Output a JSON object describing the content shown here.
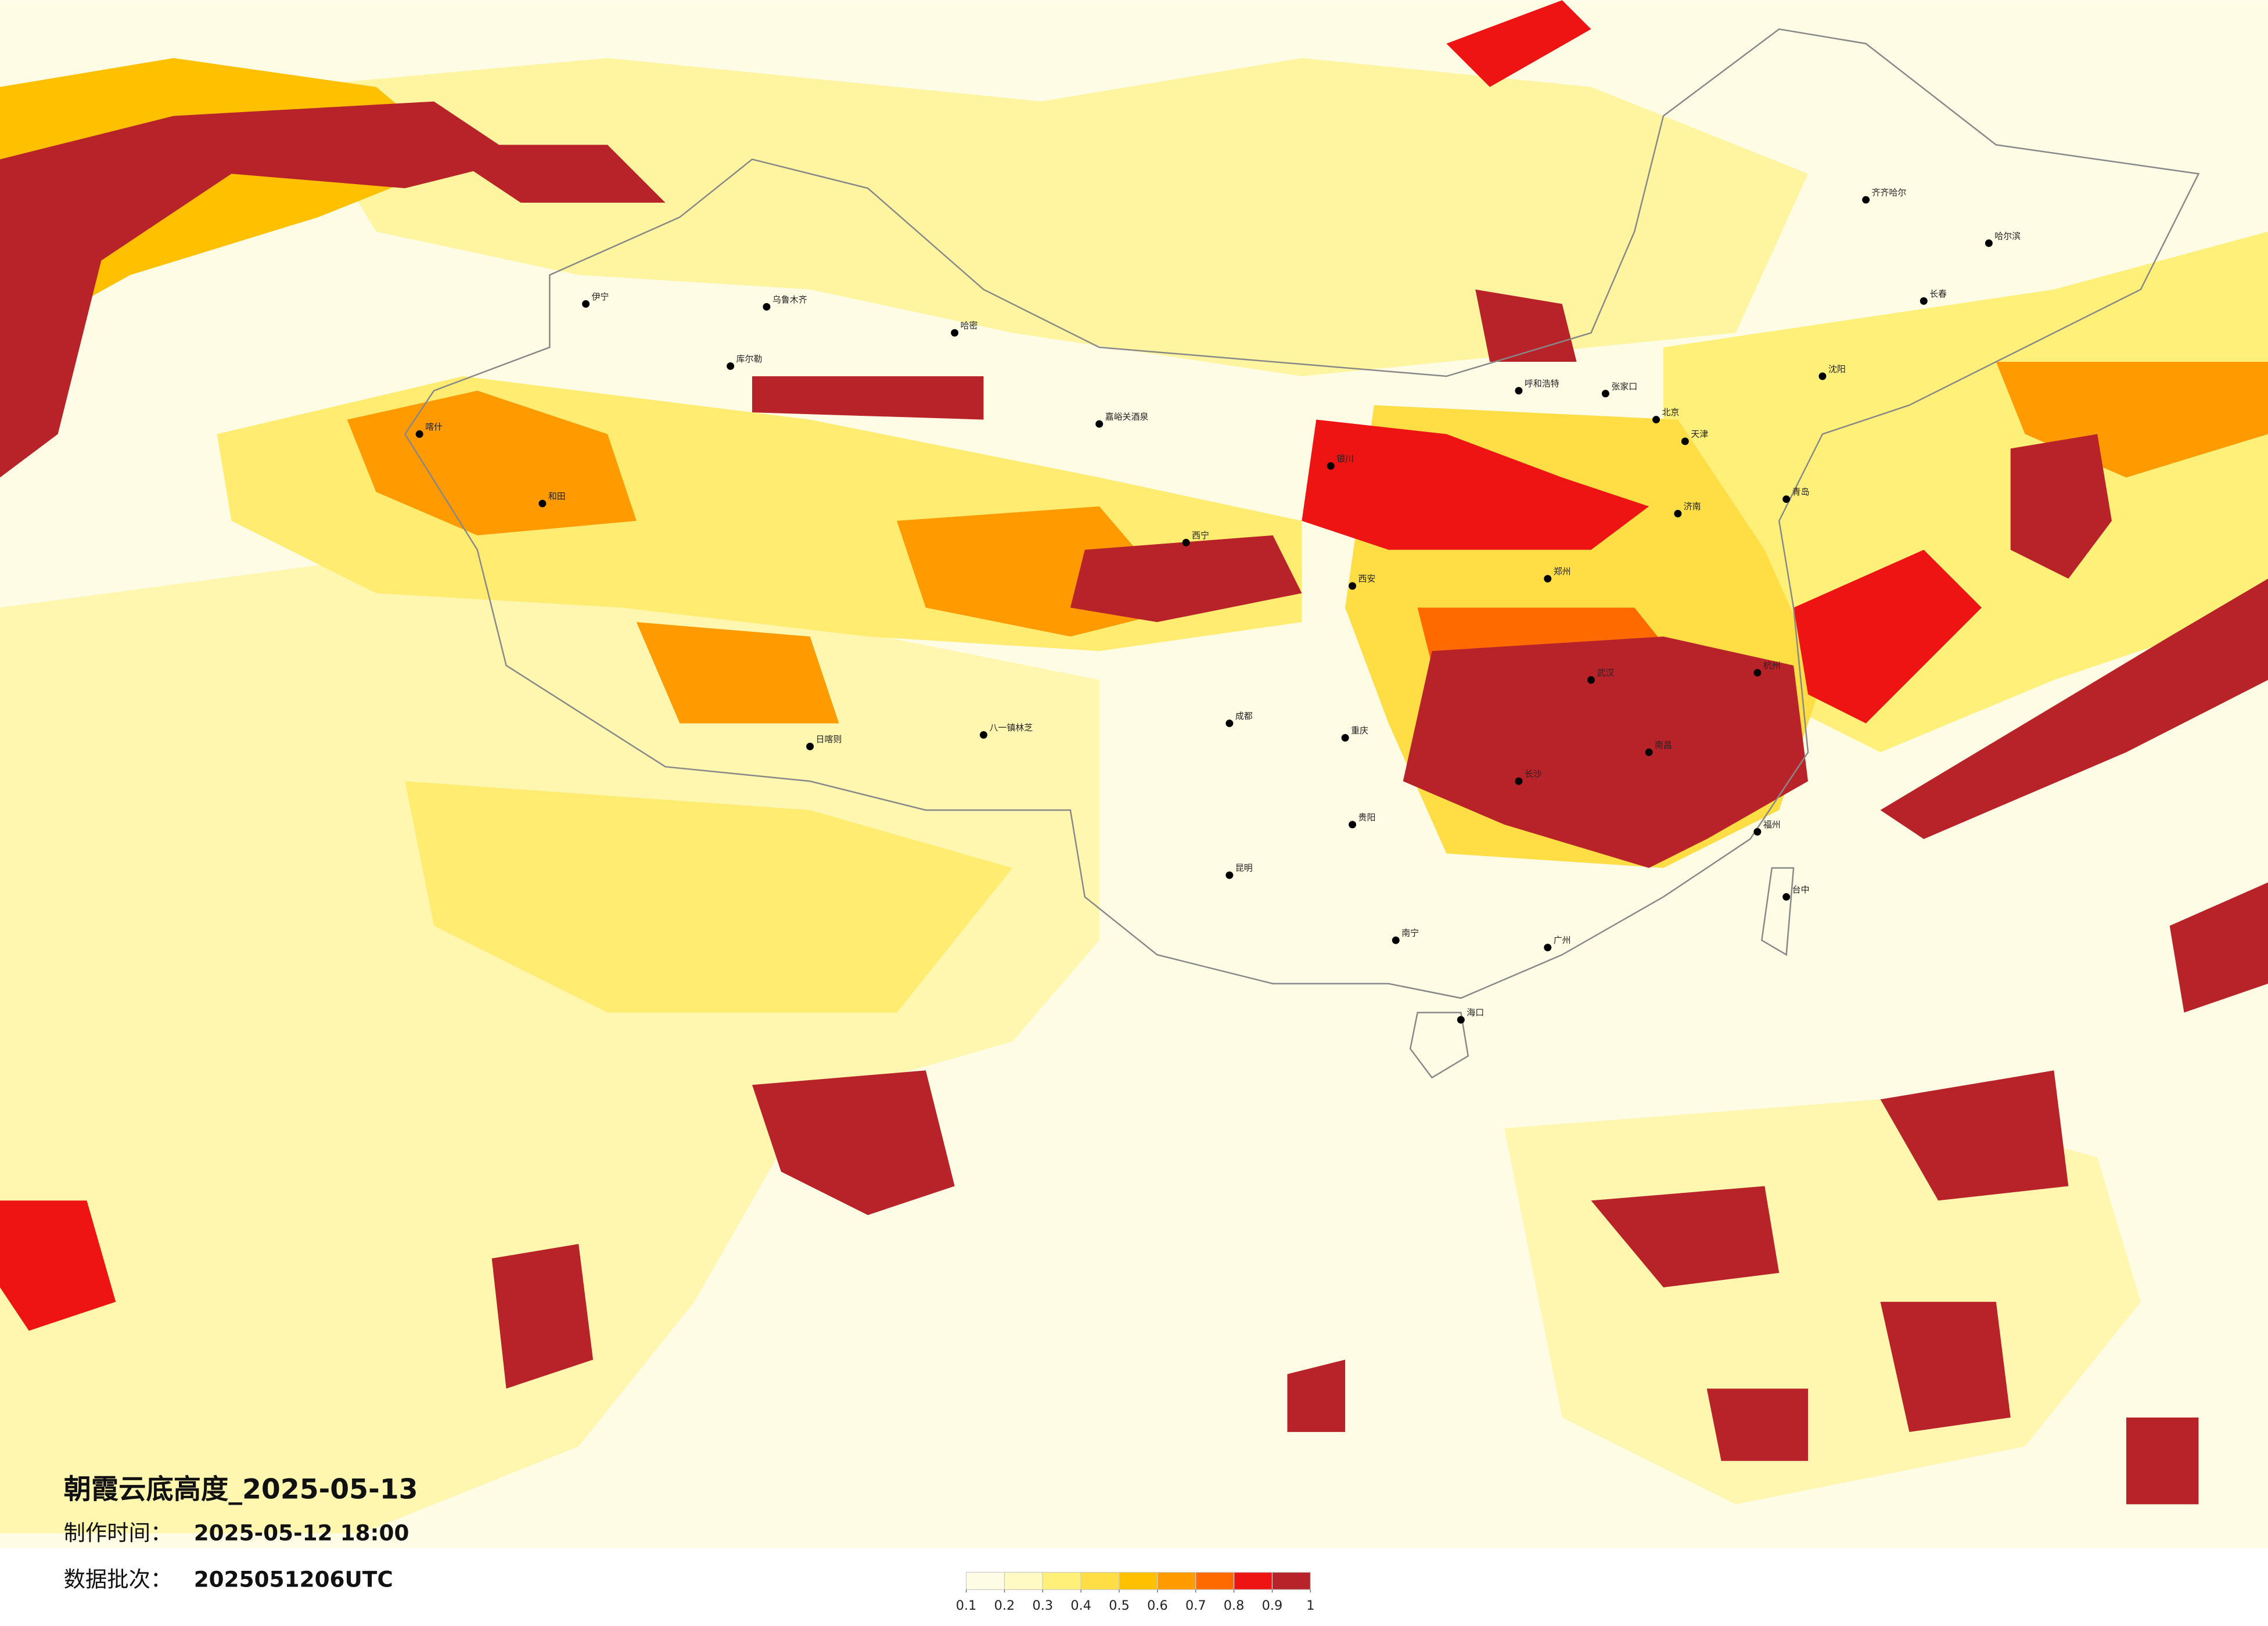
{
  "title": "朝霞云底高度_2025-05-13",
  "made_label": "制作时间：",
  "made_time": "2025-05-12 18:00",
  "batch_label": "数据批次：",
  "batch": "2025051206UTC",
  "colorbar": {
    "ticks": [
      0.1,
      0.2,
      0.3,
      0.4,
      0.5,
      0.6,
      0.7,
      0.8,
      0.9,
      1
    ],
    "colors": [
      "#fffce6",
      "#fff9c4",
      "#fff07a",
      "#ffdd44",
      "#ffc000",
      "#ff9a00",
      "#ff6a00",
      "#ee1414",
      "#b8232a"
    ]
  },
  "cities": [
    "乌鲁木齐",
    "伊宁",
    "库尔勒",
    "喀什",
    "和田",
    "哈密",
    "日喀则",
    "八一镇林芝",
    "嘉峪关酒泉",
    "西宁",
    "银川",
    "呼和浩特",
    "张家口",
    "北京",
    "天津",
    "沈阳",
    "长春",
    "哈尔滨",
    "齐齐哈尔",
    "济南",
    "青岛",
    "郑州",
    "西安",
    "成都",
    "重庆",
    "贵阳",
    "昆明",
    "南宁",
    "海口",
    "广州",
    "长沙",
    "南昌",
    "福州",
    "台中",
    "杭州",
    "武汉"
  ]
}
